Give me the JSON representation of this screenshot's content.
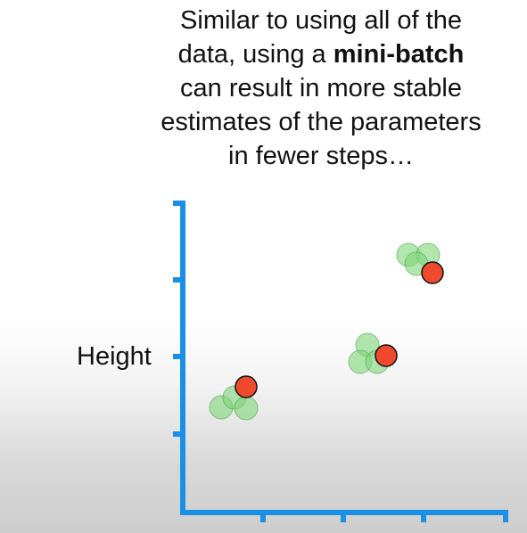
{
  "caption": {
    "line1": "Similar to using all of the",
    "line2_pre": "data, using a ",
    "line2_bold": "mini-batch",
    "line3": "can result in more stable",
    "line4": "estimates of the parameters",
    "line5": "in fewer steps…"
  },
  "axes": {
    "ylabel": "Height"
  },
  "colors": {
    "axis": "#1a8fe6",
    "sample_fill": "#7ed67a",
    "sample_stroke": "#3f9a3c",
    "estimate_fill": "#f04a2e",
    "estimate_stroke": "#111111"
  },
  "clusters": [
    {
      "name": "low",
      "samples": [
        [
          248,
          457
        ],
        [
          263,
          446
        ],
        [
          276,
          458
        ]
      ],
      "estimate": [
        276,
        434
      ]
    },
    {
      "name": "middle",
      "samples": [
        [
          412,
          387
        ],
        [
          404,
          406
        ],
        [
          423,
          406
        ]
      ],
      "estimate": [
        433,
        399
      ]
    },
    {
      "name": "high",
      "samples": [
        [
          458,
          286
        ],
        [
          480,
          286
        ],
        [
          467,
          296
        ]
      ],
      "estimate": [
        485,
        306
      ]
    }
  ]
}
